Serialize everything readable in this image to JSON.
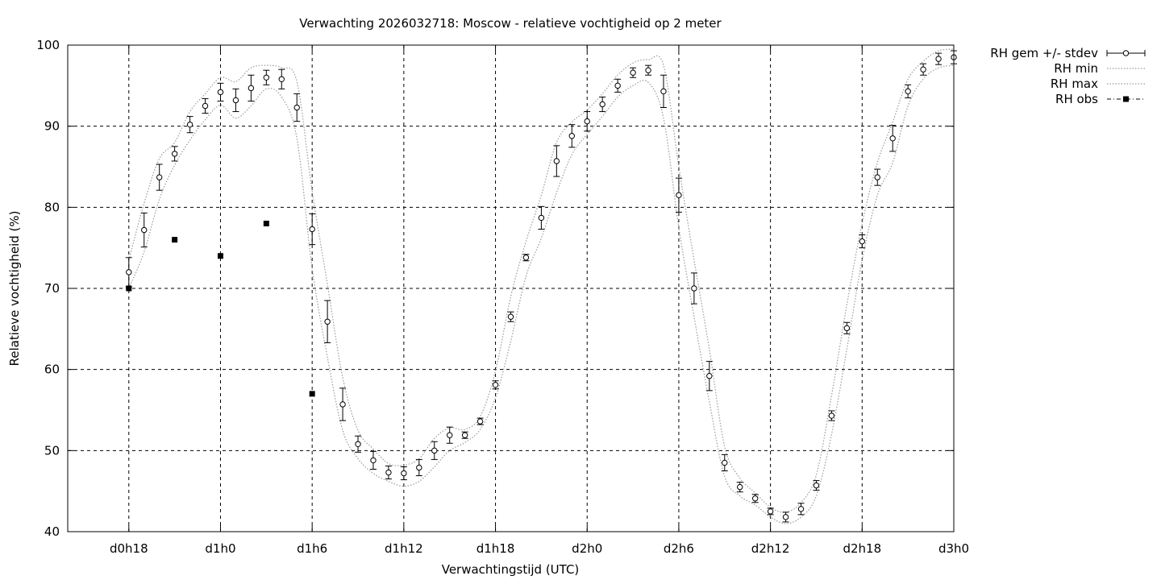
{
  "chart_data": {
    "type": "line",
    "title": "Verwachting 2026032718: Moscow - relatieve vochtigheid op 2 meter",
    "xlabel": "Verwachtingstijd (UTC)",
    "ylabel": "Relatieve vochtigheid (%)",
    "x_unit": "hours",
    "xlim": [
      14,
      72
    ],
    "ylim": [
      40,
      100
    ],
    "yticks": [
      40,
      50,
      60,
      70,
      80,
      90,
      100
    ],
    "xticks": [
      {
        "x": 18,
        "label": "d0h18"
      },
      {
        "x": 24,
        "label": "d1h0"
      },
      {
        "x": 30,
        "label": "d1h6"
      },
      {
        "x": 36,
        "label": "d1h12"
      },
      {
        "x": 42,
        "label": "d1h18"
      },
      {
        "x": 48,
        "label": "d2h0"
      },
      {
        "x": 54,
        "label": "d2h6"
      },
      {
        "x": 60,
        "label": "d2h12"
      },
      {
        "x": 66,
        "label": "d2h18"
      },
      {
        "x": 72,
        "label": "d3h0"
      }
    ],
    "grid": true,
    "legend_position": "outside-top-right",
    "series": [
      {
        "name": "RH gem +/- stdev",
        "style": "errorbars-open-circles",
        "x": [
          18,
          19,
          20,
          21,
          22,
          23,
          24,
          25,
          26,
          27,
          28,
          29,
          30,
          31,
          32,
          33,
          34,
          35,
          36,
          37,
          38,
          39,
          40,
          41,
          42,
          43,
          44,
          45,
          46,
          47,
          48,
          49,
          50,
          51,
          52,
          53,
          54,
          55,
          56,
          57,
          58,
          59,
          60,
          61,
          62,
          63,
          64,
          65,
          66,
          67,
          68,
          69,
          70,
          71,
          72
        ],
        "values": [
          72.0,
          77.2,
          83.7,
          86.6,
          90.2,
          92.5,
          94.2,
          93.2,
          94.7,
          96.0,
          95.8,
          92.3,
          77.3,
          65.9,
          55.7,
          50.8,
          48.8,
          47.3,
          47.2,
          47.9,
          50.0,
          51.9,
          51.9,
          53.6,
          58.1,
          66.5,
          73.8,
          78.7,
          85.7,
          88.8,
          90.6,
          92.7,
          95.0,
          96.6,
          96.9,
          94.3,
          81.5,
          70.0,
          59.2,
          48.5,
          45.5,
          44.1,
          42.5,
          41.8,
          42.8,
          45.7,
          54.3,
          65.1,
          75.8,
          83.7,
          88.5,
          94.3,
          97.0,
          98.3,
          98.5
        ],
        "stdev": [
          1.8,
          2.1,
          1.6,
          0.9,
          1.0,
          0.9,
          1.1,
          1.4,
          1.6,
          0.9,
          1.2,
          1.7,
          1.9,
          2.6,
          2.0,
          1.0,
          1.1,
          0.8,
          0.8,
          1.0,
          1.1,
          1.0,
          0.4,
          0.4,
          0.5,
          0.6,
          0.4,
          1.4,
          1.9,
          1.4,
          1.2,
          0.9,
          0.8,
          0.6,
          0.6,
          2.0,
          2.1,
          1.9,
          1.8,
          1.0,
          0.6,
          0.5,
          0.4,
          0.6,
          0.7,
          0.6,
          0.6,
          0.7,
          0.8,
          1.0,
          1.6,
          0.8,
          0.7,
          0.7,
          0.8
        ]
      },
      {
        "name": "RH min",
        "style": "dotted",
        "x": [
          18,
          19,
          20,
          21,
          22,
          23,
          24,
          25,
          26,
          27,
          28,
          29,
          30,
          31,
          32,
          33,
          34,
          35,
          36,
          37,
          38,
          39,
          40,
          41,
          42,
          43,
          44,
          45,
          46,
          47,
          48,
          49,
          50,
          51,
          52,
          53,
          54,
          55,
          56,
          57,
          58,
          59,
          60,
          61,
          62,
          63,
          64,
          65,
          66,
          67,
          68,
          69,
          70,
          71,
          72
        ],
        "values": [
          70.0,
          74.5,
          81.0,
          85.2,
          88.3,
          90.8,
          92.6,
          91.0,
          92.5,
          94.6,
          93.6,
          88.5,
          72.5,
          61.5,
          52.5,
          49.0,
          47.2,
          46.2,
          45.6,
          46.2,
          48.0,
          50.0,
          51.0,
          52.6,
          56.5,
          63.5,
          71.5,
          76.2,
          81.8,
          86.5,
          89.0,
          91.2,
          93.6,
          95.0,
          95.4,
          91.0,
          77.5,
          66.5,
          56.0,
          46.8,
          44.4,
          43.3,
          41.8,
          41.0,
          41.8,
          44.4,
          52.0,
          62.5,
          73.5,
          81.5,
          85.5,
          92.5,
          95.8,
          97.2,
          97.5
        ]
      },
      {
        "name": "RH max",
        "style": "dotted",
        "x": [
          18,
          19,
          20,
          21,
          22,
          23,
          24,
          25,
          26,
          27,
          28,
          29,
          30,
          31,
          32,
          33,
          34,
          35,
          36,
          37,
          38,
          39,
          40,
          41,
          42,
          43,
          44,
          45,
          46,
          47,
          48,
          49,
          50,
          51,
          52,
          53,
          54,
          55,
          56,
          57,
          58,
          59,
          60,
          61,
          62,
          63,
          64,
          65,
          66,
          67,
          68,
          69,
          70,
          71,
          72
        ],
        "values": [
          73.5,
          80.5,
          86.0,
          88.0,
          91.8,
          94.0,
          96.0,
          95.5,
          97.2,
          97.5,
          97.2,
          95.5,
          82.0,
          70.5,
          59.0,
          52.5,
          50.2,
          48.4,
          48.2,
          49.0,
          51.5,
          52.8,
          52.6,
          54.2,
          59.8,
          69.0,
          75.8,
          81.5,
          88.0,
          90.5,
          92.0,
          94.0,
          96.3,
          97.8,
          98.2,
          97.5,
          85.0,
          73.5,
          62.5,
          50.5,
          46.6,
          44.8,
          43.0,
          42.4,
          43.6,
          47.0,
          56.8,
          68.0,
          78.0,
          85.5,
          90.5,
          95.8,
          98.0,
          99.3,
          99.5
        ]
      },
      {
        "name": "RH obs",
        "style": "filled-squares",
        "x": [
          18,
          21,
          24,
          27,
          30
        ],
        "values": [
          70,
          76,
          74,
          78,
          57
        ]
      }
    ]
  }
}
